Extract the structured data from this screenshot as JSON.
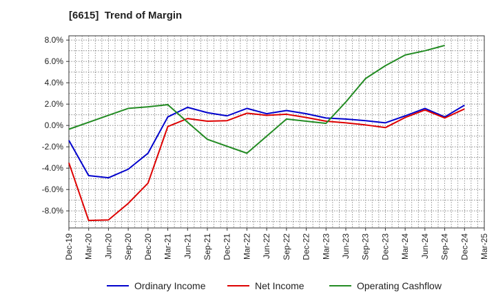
{
  "chart_data": {
    "type": "line",
    "title": "[6615]  Trend of Margin",
    "xlabel": "",
    "ylabel": "",
    "ylim": [
      -9.6,
      8.4
    ],
    "y_ticks": [
      8.0,
      6.0,
      4.0,
      2.0,
      0.0,
      -2.0,
      -4.0,
      -6.0,
      -8.0
    ],
    "y_tick_labels": [
      "8.0%",
      "6.0%",
      "4.0%",
      "2.0%",
      "0.0%",
      "-2.0%",
      "-4.0%",
      "-6.0%",
      "-8.0%"
    ],
    "categories": [
      "Dec-19",
      "Mar-20",
      "Jun-20",
      "Sep-20",
      "Dec-20",
      "Mar-21",
      "Jun-21",
      "Sep-21",
      "Dec-21",
      "Mar-22",
      "Jun-22",
      "Sep-22",
      "Dec-22",
      "Mar-23",
      "Jun-23",
      "Sep-23",
      "Dec-23",
      "Mar-24",
      "Jun-24",
      "Sep-24",
      "Dec-24",
      "Mar-25"
    ],
    "grid": true,
    "legend_position": "bottom",
    "series": [
      {
        "name": "Ordinary Income",
        "color": "#0000cc",
        "values": [
          -1.4,
          -4.7,
          -4.9,
          -4.1,
          -2.6,
          0.8,
          1.7,
          1.2,
          0.9,
          1.6,
          1.1,
          1.4,
          1.1,
          0.7,
          0.6,
          0.45,
          0.25,
          0.9,
          1.6,
          0.8,
          1.9,
          null
        ]
      },
      {
        "name": "Net Income",
        "color": "#dd0000",
        "values": [
          -3.5,
          -8.9,
          -8.85,
          -7.3,
          -5.4,
          -0.1,
          0.65,
          0.4,
          0.45,
          1.15,
          0.95,
          1.05,
          0.75,
          0.4,
          0.25,
          0.05,
          -0.2,
          0.75,
          1.45,
          0.7,
          1.55,
          null
        ]
      },
      {
        "name": "Operating Cashflow",
        "color": "#228b22",
        "values": [
          -0.35,
          0.3,
          0.95,
          1.6,
          1.75,
          1.95,
          0.3,
          -1.3,
          -1.95,
          -2.6,
          -1.0,
          0.6,
          0.4,
          0.2,
          2.2,
          4.4,
          5.6,
          6.6,
          7.0,
          7.5,
          null,
          null
        ]
      }
    ]
  }
}
